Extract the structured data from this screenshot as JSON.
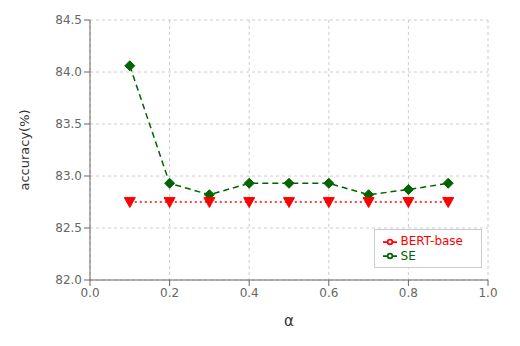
{
  "chart_data": {
    "type": "line",
    "x": [
      0.1,
      0.2,
      0.3,
      0.4,
      0.5,
      0.6,
      0.7,
      0.8,
      0.9
    ],
    "series": [
      {
        "name": "SE",
        "color": "#006400",
        "marker": "diamond",
        "line_style": "dashed",
        "values": [
          84.06,
          82.93,
          82.82,
          82.93,
          82.93,
          82.93,
          82.82,
          82.87,
          82.93
        ]
      },
      {
        "name": "BERT-base",
        "color": "#ff0000",
        "marker": "triangle_down",
        "line_style": "dotted",
        "values": [
          82.75,
          82.75,
          82.75,
          82.75,
          82.75,
          82.75,
          82.75,
          82.75,
          82.75
        ]
      }
    ],
    "x_label": "α",
    "y_label": "accuracy(%)",
    "xlim": [
      0.0,
      1.0
    ],
    "ylim": [
      82.0,
      84.5
    ],
    "xticks": [
      {
        "value": 0.0,
        "label": "0.0"
      },
      0.2,
      0.4,
      0.6,
      0.8,
      {
        "value": 1.0,
        "label": "1.0"
      }
    ],
    "yticks": [
      {
        "value": 82.0,
        "label": "82.0"
      },
      82.5,
      {
        "value": 83.0,
        "label": "83.0"
      },
      83.5,
      {
        "value": 84.0,
        "label": "84.0"
      },
      84.5
    ],
    "grid": true,
    "legend": "lower right"
  }
}
